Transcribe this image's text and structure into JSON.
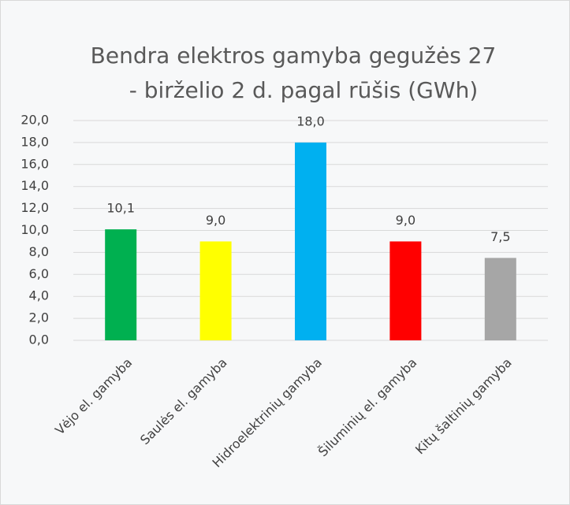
{
  "chart_data": {
    "type": "bar",
    "title": [
      "Bendra elektros gamyba gegužės 27",
      "- birželio 2 d. pagal rūšis (GWh)"
    ],
    "categories": [
      "Vėjo el. gamyba",
      "Saulės el. gamyba",
      "Hidroelektrinių gamyba",
      "Šiluminių el. gamyba",
      "Kitų šaltinių gamyba"
    ],
    "values": [
      10.1,
      9.0,
      18.0,
      9.0,
      7.5
    ],
    "value_labels": [
      "10,1",
      "9,0",
      "18,0",
      "9,0",
      "7,5"
    ],
    "colors": [
      "#00b050",
      "#ffff00",
      "#00b0f0",
      "#ff0000",
      "#a6a6a6"
    ],
    "ylim": [
      0,
      20
    ],
    "yticks": [
      {
        "value": 0,
        "label": "0,0"
      },
      {
        "value": 2,
        "label": "2,0"
      },
      {
        "value": 4,
        "label": "4,0"
      },
      {
        "value": 6,
        "label": "6,0"
      },
      {
        "value": 8,
        "label": "8,0"
      },
      {
        "value": 10,
        "label": "10,0"
      },
      {
        "value": 12,
        "label": "12,0"
      },
      {
        "value": 14,
        "label": "14,0"
      },
      {
        "value": 16,
        "label": "16,0"
      },
      {
        "value": 18,
        "label": "18,0"
      },
      {
        "value": 20,
        "label": "20,0"
      }
    ],
    "grid": true
  }
}
